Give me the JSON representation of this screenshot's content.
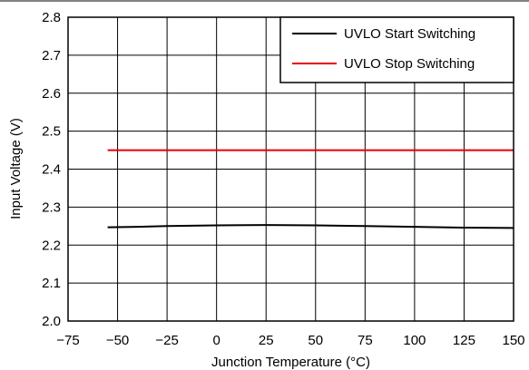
{
  "chart_data": {
    "type": "line",
    "title": "",
    "xlabel": "Junction Temperature (°C)",
    "ylabel": "Input Voltage (V)",
    "xlim": [
      -75,
      150
    ],
    "ylim": [
      2.0,
      2.8
    ],
    "x_ticks": [
      -75,
      -50,
      -25,
      0,
      25,
      50,
      75,
      100,
      125,
      150
    ],
    "x_tick_labels": [
      "−75",
      "−50",
      "−25",
      "0",
      "25",
      "50",
      "75",
      "100",
      "125",
      "150"
    ],
    "y_ticks": [
      2.0,
      2.1,
      2.2,
      2.3,
      2.4,
      2.5,
      2.6,
      2.7,
      2.8
    ],
    "y_tick_labels": [
      "2.0",
      "2.1",
      "2.2",
      "2.3",
      "2.4",
      "2.5",
      "2.6",
      "2.7",
      "2.8"
    ],
    "grid": true,
    "legend_position": "top-right",
    "series": [
      {
        "name": "UVLO Start Switching",
        "color": "#000000",
        "x": [
          -55,
          -40,
          -25,
          0,
          25,
          50,
          75,
          100,
          125,
          150
        ],
        "y": [
          2.247,
          2.248,
          2.25,
          2.252,
          2.253,
          2.252,
          2.25,
          2.248,
          2.246,
          2.245
        ]
      },
      {
        "name": "UVLO Stop Switching",
        "color": "#e8000b",
        "x": [
          -55,
          -25,
          0,
          25,
          50,
          75,
          100,
          125,
          150
        ],
        "y": [
          2.45,
          2.45,
          2.45,
          2.45,
          2.45,
          2.45,
          2.45,
          2.45,
          2.45
        ]
      }
    ]
  }
}
